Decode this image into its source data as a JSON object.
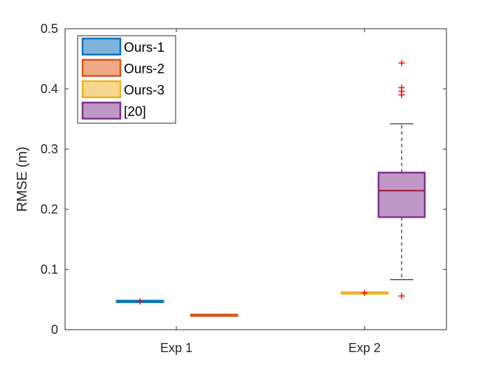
{
  "chart_data": {
    "type": "box",
    "title": "",
    "xlabel": "",
    "ylabel": "RMSE (m)",
    "ylim": [
      0,
      0.5
    ],
    "yticks": [
      0,
      0.1,
      0.2,
      0.3,
      0.4,
      0.5
    ],
    "ytick_labels": [
      "0",
      "0.1",
      "0.2",
      "0.3",
      "0.4",
      "0.5"
    ],
    "categories": [
      "Exp 1",
      "Exp 2"
    ],
    "grid": false,
    "legend_position": "top-left",
    "series": [
      {
        "name": "Ours-1",
        "color": "#0072BD",
        "fill": "#7fb3dc",
        "boxes": [
          {
            "category": "Exp 1",
            "whisker_low": 0.0465,
            "q1": 0.0465,
            "median": 0.047,
            "q3": 0.0475,
            "whisker_high": 0.0475,
            "outliers": [
              0.047
            ]
          }
        ]
      },
      {
        "name": "Ours-2",
        "color": "#D95319",
        "fill": "#efa987",
        "boxes": [
          {
            "category": "Exp 1",
            "whisker_low": 0.0235,
            "q1": 0.0235,
            "median": 0.024,
            "q3": 0.0245,
            "whisker_high": 0.0245,
            "outliers": []
          }
        ]
      },
      {
        "name": "Ours-3",
        "color": "#EDB120",
        "fill": "#f6d78f",
        "boxes": [
          {
            "category": "Exp 2",
            "whisker_low": 0.06,
            "q1": 0.0605,
            "median": 0.061,
            "q3": 0.0615,
            "whisker_high": 0.062,
            "outliers": [
              0.061
            ]
          }
        ]
      },
      {
        "name": "[20]",
        "color": "#7E2F8E",
        "fill": "#bf97c6",
        "median_color": "#A2142F",
        "boxes": [
          {
            "category": "Exp 2",
            "whisker_low": 0.083,
            "q1": 0.187,
            "median": 0.231,
            "q3": 0.261,
            "whisker_high": 0.342,
            "outliers": [
              0.056,
              0.39,
              0.396,
              0.402,
              0.443
            ]
          }
        ]
      }
    ],
    "outlier_color": "#FF0000"
  }
}
